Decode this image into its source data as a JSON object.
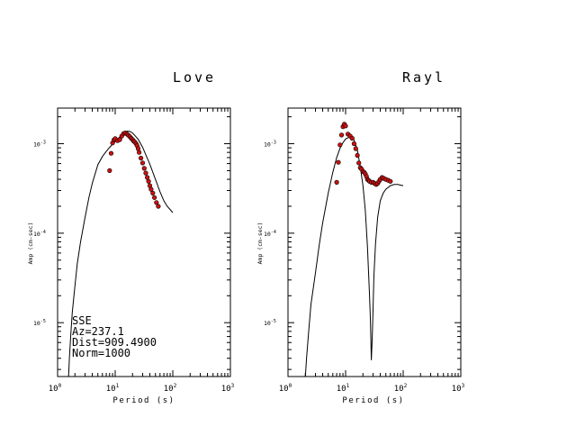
{
  "colors": {
    "ink": "#000000",
    "marker_fill": "#cc1111",
    "background": "#ffffff"
  },
  "chart_data": [
    {
      "type": "scatter",
      "title": "Love",
      "xlabel": "Period (s)",
      "ylabel": "Amp (cm-sec)",
      "xscale": "log",
      "yscale": "log",
      "xlim": [
        1,
        1000
      ],
      "ylim": [
        2.5e-06,
        0.0025
      ],
      "xticks": [
        {
          "v": 1,
          "b": "10",
          "e": "0"
        },
        {
          "v": 10,
          "b": "10",
          "e": "1"
        },
        {
          "v": 100,
          "b": "10",
          "e": "2"
        },
        {
          "v": 1000,
          "b": "10",
          "e": "3"
        }
      ],
      "yticks": [
        {
          "v": 0.001,
          "b": "10",
          "e": "-3"
        },
        {
          "v": 0.0001,
          "b": "10",
          "e": "-4"
        },
        {
          "v": 1e-05,
          "b": "10",
          "e": "-5"
        }
      ],
      "annotation": [
        "SSE",
        "Az=237.1",
        "Dist=909.4900",
        "Norm=1000"
      ],
      "theory": {
        "x": [
          1.55,
          1.6,
          1.7,
          1.8,
          2.0,
          2.2,
          2.5,
          3.0,
          3.5,
          4.0,
          5.0,
          6.0,
          7.0,
          8.0,
          10.0,
          12.0,
          14.0,
          16.0,
          18.0,
          20.0,
          25.0,
          30.0,
          40.0,
          50.0,
          60.0,
          70.0,
          80.0,
          100.0
        ],
        "y": [
          2.5e-06,
          4e-06,
          7.5e-06,
          1.3e-05,
          2.6e-05,
          4.6e-05,
          8e-05,
          0.00015,
          0.00025,
          0.00036,
          0.00058,
          0.00072,
          0.00082,
          0.00091,
          0.00106,
          0.00119,
          0.00131,
          0.00138,
          0.00137,
          0.00132,
          0.00112,
          0.00091,
          0.00059,
          0.0004,
          0.00029,
          0.00023,
          0.0002,
          0.00017
        ]
      },
      "observed": {
        "x": [
          8.0,
          8.5,
          9.0,
          9.5,
          10.0,
          11.0,
          12.0,
          13.0,
          14.0,
          15.0,
          16.0,
          17.0,
          18.0,
          19.0,
          20.0,
          21.0,
          22.0,
          23.0,
          24.0,
          25.0,
          26.0,
          28.0,
          30.0,
          32.0,
          34.0,
          36.0,
          38.0,
          40.0,
          42.0,
          45.0,
          48.0,
          52.0,
          56.0
        ],
        "y": [
          0.0005,
          0.00078,
          0.00102,
          0.0011,
          0.00114,
          0.00108,
          0.00111,
          0.00122,
          0.0013,
          0.00132,
          0.00128,
          0.00124,
          0.0012,
          0.00115,
          0.00111,
          0.00107,
          0.00104,
          0.001,
          0.00095,
          0.00088,
          0.0008,
          0.00069,
          0.00061,
          0.00053,
          0.00047,
          0.00042,
          0.00038,
          0.00034,
          0.00031,
          0.00028,
          0.00025,
          0.00022,
          0.0002
        ]
      }
    },
    {
      "type": "scatter",
      "title": "Rayl",
      "xlabel": "Period (s)",
      "ylabel": "Amp (cm-sec)",
      "xscale": "log",
      "yscale": "log",
      "xlim": [
        1,
        1000
      ],
      "ylim": [
        2.5e-06,
        0.0025
      ],
      "xticks": [
        {
          "v": 1,
          "b": "10",
          "e": "0"
        },
        {
          "v": 10,
          "b": "10",
          "e": "1"
        },
        {
          "v": 100,
          "b": "10",
          "e": "2"
        },
        {
          "v": 1000,
          "b": "10",
          "e": "3"
        }
      ],
      "yticks": [
        {
          "v": 0.001,
          "b": "10",
          "e": "-3"
        },
        {
          "v": 0.0001,
          "b": "10",
          "e": "-4"
        },
        {
          "v": 1e-05,
          "b": "10",
          "e": "-5"
        }
      ],
      "annotation": [],
      "theory": {
        "x": [
          2.0,
          2.1,
          2.3,
          2.5,
          3.0,
          3.5,
          4.0,
          5.0,
          6.0,
          7.0,
          8.0,
          9.0,
          10.0,
          12.0,
          14.0,
          16.0,
          18.0,
          20.0,
          22.0,
          24.0,
          26.0,
          27.0,
          28.0,
          29.0,
          30.0,
          31.0,
          33.0,
          36.0,
          40.0,
          45.0,
          50.0,
          60.0,
          70.0,
          80.0,
          100.0
        ],
        "y": [
          2.5e-06,
          4e-06,
          8.5e-06,
          1.6e-05,
          3.6e-05,
          7.5e-05,
          0.00013,
          0.00028,
          0.00048,
          0.0007,
          0.00089,
          0.00103,
          0.00113,
          0.0012,
          0.0011,
          0.00085,
          0.00055,
          0.00034,
          0.00018,
          7e-05,
          2e-05,
          1.05e-05,
          3.8e-06,
          6.8e-06,
          1.4e-05,
          3.2e-05,
          7.5e-05,
          0.00015,
          0.00023,
          0.00028,
          0.00031,
          0.00034,
          0.00035,
          0.00035,
          0.00034
        ]
      },
      "observed": {
        "x": [
          7.0,
          7.5,
          8.0,
          8.5,
          9.0,
          9.5,
          10.0,
          11.0,
          12.0,
          13.0,
          14.0,
          15.0,
          16.0,
          17.0,
          18.0,
          19.0,
          20.0,
          21.0,
          22.0,
          23.0,
          24.0,
          25.0,
          26.0,
          28.0,
          30.0,
          32.0,
          34.0,
          36.0,
          38.0,
          40.0,
          43.0,
          46.0,
          50.0,
          55.0,
          60.0
        ],
        "y": [
          0.00037,
          0.00062,
          0.00097,
          0.00125,
          0.00155,
          0.00165,
          0.00158,
          0.00128,
          0.00122,
          0.00115,
          0.001,
          0.00088,
          0.00074,
          0.00061,
          0.00054,
          0.00052,
          0.00049,
          0.00048,
          0.00046,
          0.00043,
          0.0004,
          0.00039,
          0.00038,
          0.00037,
          0.00037,
          0.00036,
          0.00035,
          0.00036,
          0.00038,
          0.0004,
          0.00042,
          0.00041,
          0.0004,
          0.00039,
          0.00038
        ]
      }
    }
  ]
}
